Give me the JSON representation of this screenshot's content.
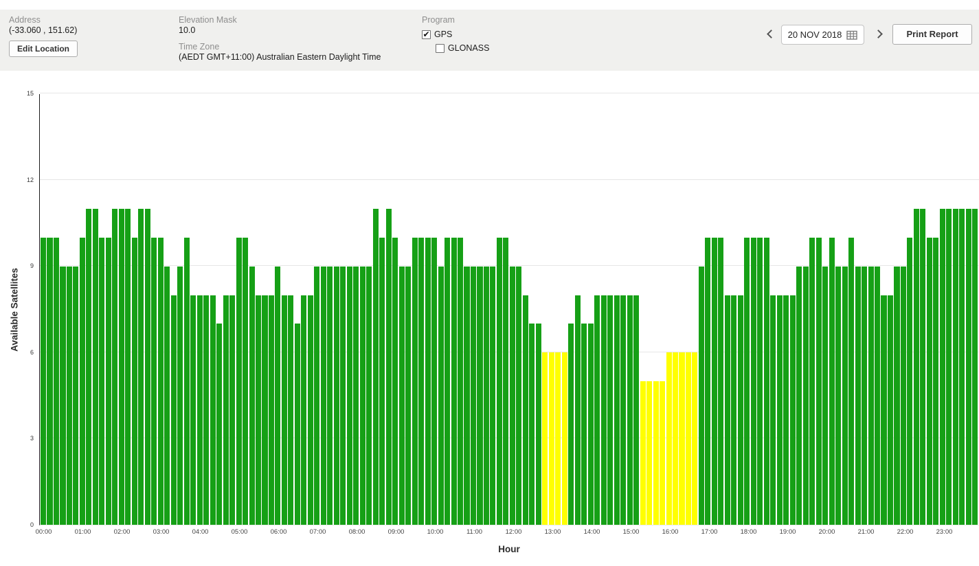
{
  "header": {
    "address_label": "Address",
    "address_value": "(-33.060 , 151.62)",
    "edit_location_button": "Edit Location",
    "elevation_mask_label": "Elevation Mask",
    "elevation_mask_value": "10.0",
    "time_zone_label": "Time Zone",
    "time_zone_value": "(AEDT GMT+11:00) Australian Eastern Daylight Time",
    "program_label": "Program",
    "programs": [
      {
        "label": "GPS",
        "checked": true
      },
      {
        "label": "GLONASS",
        "checked": false
      }
    ],
    "date_value": "20 NOV 2018",
    "print_button": "Print Report"
  },
  "icons": {
    "prev": "chevron-left",
    "next": "chevron-right",
    "date_picker": "calendar-grid",
    "check_glyph": "✔"
  },
  "colors": {
    "header_bg": "#f0f0ee",
    "bar_normal": "#16a016",
    "bar_low": "#ffff00",
    "gridline": "#e6e6e6"
  },
  "chart_data": {
    "type": "bar",
    "title": "",
    "xlabel": "Hour",
    "ylabel": "Available Satellites",
    "ylim": [
      0,
      15
    ],
    "yticks": [
      0,
      3,
      6,
      9,
      12,
      15
    ],
    "grid": "horizontal",
    "legend": "none",
    "interval_minutes": 10,
    "low_threshold": 6,
    "x_hour_labels": [
      "00:00",
      "01:00",
      "02:00",
      "03:00",
      "04:00",
      "05:00",
      "06:00",
      "07:00",
      "08:00",
      "09:00",
      "10:00",
      "11:00",
      "12:00",
      "13:00",
      "14:00",
      "15:00",
      "16:00",
      "17:00",
      "18:00",
      "19:00",
      "20:00",
      "21:00",
      "22:00",
      "23:00"
    ],
    "values": [
      10,
      10,
      10,
      9,
      9,
      9,
      10,
      11,
      11,
      10,
      10,
      11,
      11,
      11,
      10,
      11,
      11,
      10,
      10,
      9,
      8,
      9,
      10,
      8,
      8,
      8,
      8,
      7,
      8,
      8,
      10,
      10,
      9,
      8,
      8,
      8,
      9,
      8,
      8,
      7,
      8,
      8,
      9,
      9,
      9,
      9,
      9,
      9,
      9,
      9,
      9,
      11,
      10,
      11,
      10,
      9,
      9,
      10,
      10,
      10,
      10,
      9,
      10,
      10,
      10,
      9,
      9,
      9,
      9,
      9,
      10,
      10,
      9,
      9,
      8,
      7,
      7,
      6,
      6,
      6,
      6,
      7,
      8,
      7,
      7,
      8,
      8,
      8,
      8,
      8,
      8,
      8,
      5,
      5,
      5,
      5,
      6,
      6,
      6,
      6,
      6,
      9,
      10,
      10,
      10,
      8,
      8,
      8,
      10,
      10,
      10,
      10,
      8,
      8,
      8,
      8,
      9,
      9,
      10,
      10,
      9,
      10,
      9,
      9,
      10,
      9,
      9,
      9,
      9,
      8,
      8,
      9,
      9,
      10,
      11,
      11,
      10,
      10,
      11,
      11,
      11,
      11,
      11,
      11
    ]
  }
}
